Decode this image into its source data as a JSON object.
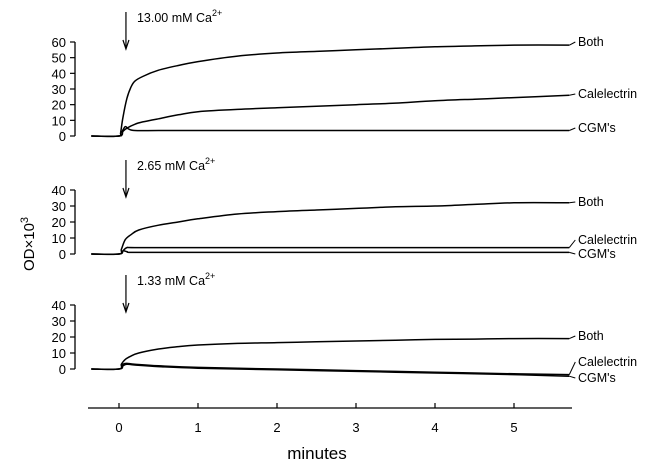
{
  "figure": {
    "xlabel": "minutes",
    "ylabel": "OD×10",
    "ylabel_sup": "3"
  },
  "chart_data": [
    {
      "type": "line",
      "annotation": {
        "text": "13.00 mM  Ca",
        "sup": "2+",
        "x": 0.05
      },
      "ylim": [
        0,
        60
      ],
      "yticks": [
        "0",
        "10",
        "20",
        "30",
        "40",
        "50",
        "60"
      ],
      "series": [
        {
          "name": "Both",
          "points": [
            [
              -0.35,
              0
            ],
            [
              0,
              0
            ],
            [
              0.02,
              2
            ],
            [
              0.05,
              12
            ],
            [
              0.1,
              24
            ],
            [
              0.15,
              31
            ],
            [
              0.2,
              35
            ],
            [
              0.3,
              38
            ],
            [
              0.5,
              42
            ],
            [
              0.75,
              45
            ],
            [
              1,
              47.5
            ],
            [
              1.5,
              51
            ],
            [
              2,
              53
            ],
            [
              2.5,
              54
            ],
            [
              3,
              55
            ],
            [
              3.5,
              56
            ],
            [
              4,
              57
            ],
            [
              4.5,
              57.5
            ],
            [
              5,
              58
            ],
            [
              5.7,
              58
            ]
          ]
        },
        {
          "name": "Calelectrin",
          "points": [
            [
              -0.35,
              0
            ],
            [
              0,
              0
            ],
            [
              0.05,
              3
            ],
            [
              0.1,
              5
            ],
            [
              0.2,
              7.5
            ],
            [
              0.3,
              9
            ],
            [
              0.5,
              11
            ],
            [
              0.75,
              13.5
            ],
            [
              1,
              15.5
            ],
            [
              1.5,
              17
            ],
            [
              2,
              18
            ],
            [
              2.5,
              19
            ],
            [
              3,
              20
            ],
            [
              3.5,
              21
            ],
            [
              4,
              22.5
            ],
            [
              4.5,
              23.5
            ],
            [
              5,
              24.5
            ],
            [
              5.7,
              26
            ]
          ]
        },
        {
          "name": "CGM's",
          "points": [
            [
              -0.35,
              0
            ],
            [
              0,
              0
            ],
            [
              0.04,
              3
            ],
            [
              0.08,
              6
            ],
            [
              0.12,
              4.5
            ],
            [
              0.2,
              3.5
            ],
            [
              0.5,
              3.5
            ],
            [
              1,
              3.5
            ],
            [
              2,
              3.5
            ],
            [
              3,
              3.5
            ],
            [
              4,
              3.5
            ],
            [
              5,
              3.5
            ],
            [
              5.7,
              3.5
            ]
          ]
        }
      ]
    },
    {
      "type": "line",
      "annotation": {
        "text": "2.65 mM  Ca",
        "sup": "2+",
        "x": 0.05
      },
      "ylim": [
        0,
        40
      ],
      "yticks": [
        "0",
        "10",
        "20",
        "30",
        "40"
      ],
      "series": [
        {
          "name": "Both",
          "points": [
            [
              -0.35,
              0
            ],
            [
              0,
              0
            ],
            [
              0.03,
              3
            ],
            [
              0.08,
              9
            ],
            [
              0.15,
              12
            ],
            [
              0.25,
              15
            ],
            [
              0.5,
              18
            ],
            [
              0.75,
              20
            ],
            [
              1,
              22
            ],
            [
              1.5,
              25
            ],
            [
              2,
              26.5
            ],
            [
              2.5,
              27.5
            ],
            [
              3,
              28.5
            ],
            [
              3.5,
              29.5
            ],
            [
              4,
              30
            ],
            [
              4.5,
              31
            ],
            [
              5,
              32
            ],
            [
              5.7,
              32
            ]
          ]
        },
        {
          "name": "Calelectrin",
          "points": [
            [
              -0.35,
              0
            ],
            [
              0,
              0
            ],
            [
              0.05,
              2
            ],
            [
              0.1,
              4
            ],
            [
              0.2,
              4
            ],
            [
              1,
              4
            ],
            [
              2,
              4
            ],
            [
              3,
              4
            ],
            [
              4,
              4
            ],
            [
              5,
              4
            ],
            [
              5.7,
              4
            ]
          ]
        },
        {
          "name": "CGM's",
          "points": [
            [
              -0.35,
              0
            ],
            [
              0,
              0
            ],
            [
              0.05,
              2
            ],
            [
              0.1,
              1.5
            ],
            [
              0.2,
              1
            ],
            [
              1,
              1
            ],
            [
              2,
              1
            ],
            [
              3,
              1
            ],
            [
              4,
              1
            ],
            [
              5,
              1
            ],
            [
              5.7,
              1
            ]
          ]
        }
      ]
    },
    {
      "type": "line",
      "annotation": {
        "text": "1.33 mM  Ca",
        "sup": "2+",
        "x": 0.05
      },
      "ylim": [
        -5,
        40
      ],
      "yticks": [
        "0",
        "10",
        "20",
        "30",
        "40"
      ],
      "series": [
        {
          "name": "Both",
          "points": [
            [
              -0.35,
              0
            ],
            [
              0,
              0
            ],
            [
              0.03,
              3
            ],
            [
              0.08,
              6
            ],
            [
              0.15,
              8
            ],
            [
              0.25,
              10
            ],
            [
              0.5,
              12.5
            ],
            [
              0.75,
              14
            ],
            [
              1,
              15
            ],
            [
              1.5,
              16
            ],
            [
              2,
              16.5
            ],
            [
              2.5,
              17
            ],
            [
              3,
              17.5
            ],
            [
              3.5,
              18
            ],
            [
              4,
              18.5
            ],
            [
              4.5,
              18.7
            ],
            [
              5,
              19
            ],
            [
              5.7,
              19
            ]
          ]
        },
        {
          "name": "Calelectrin",
          "points": [
            [
              -0.35,
              0
            ],
            [
              0,
              0
            ],
            [
              0.05,
              3
            ],
            [
              0.1,
              3.5
            ],
            [
              0.2,
              3
            ],
            [
              0.5,
              2
            ],
            [
              1,
              1
            ],
            [
              2,
              0
            ],
            [
              3,
              -1
            ],
            [
              4,
              -2
            ],
            [
              5,
              -3
            ],
            [
              5.7,
              -3.5
            ]
          ]
        },
        {
          "name": "CGM's",
          "points": [
            [
              -0.35,
              0
            ],
            [
              0,
              0
            ],
            [
              0.05,
              2
            ],
            [
              0.1,
              3
            ],
            [
              0.2,
              2.5
            ],
            [
              0.5,
              1.5
            ],
            [
              1,
              0.5
            ],
            [
              2,
              -0.5
            ],
            [
              3,
              -1.5
            ],
            [
              4,
              -2.5
            ],
            [
              5,
              -3.5
            ],
            [
              5.7,
              -4.5
            ]
          ]
        }
      ]
    }
  ],
  "x_axis": {
    "ticks": [
      0,
      1,
      2,
      3,
      4,
      5
    ],
    "tick_labels": [
      "0",
      "1",
      "2",
      "3",
      "4",
      "5"
    ],
    "xlim": [
      -0.35,
      5.8
    ]
  }
}
